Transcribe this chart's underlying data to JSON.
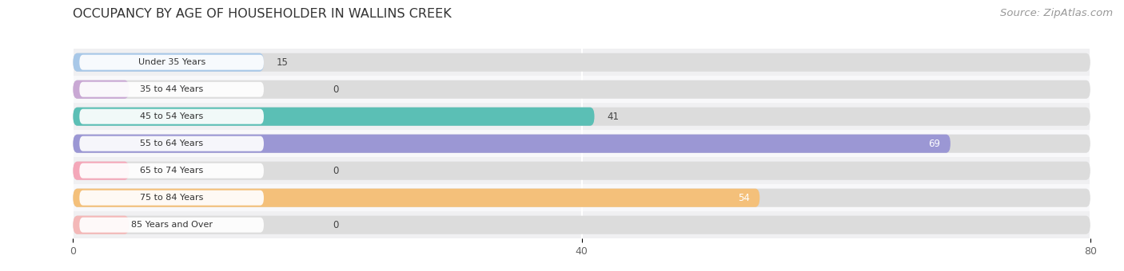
{
  "title": "OCCUPANCY BY AGE OF HOUSEHOLDER IN WALLINS CREEK",
  "source": "Source: ZipAtlas.com",
  "categories": [
    "Under 35 Years",
    "35 to 44 Years",
    "45 to 54 Years",
    "55 to 64 Years",
    "65 to 74 Years",
    "75 to 84 Years",
    "85 Years and Over"
  ],
  "values": [
    15,
    0,
    41,
    69,
    0,
    54,
    0
  ],
  "bar_colors": [
    "#a8c8e8",
    "#c9a8d4",
    "#5bbfb5",
    "#9b97d4",
    "#f4a7b9",
    "#f4c07a",
    "#f4b8b8"
  ],
  "background_color": "#f7f7f7",
  "bar_bg_color": "#e8e8e8",
  "row_bg_colors": [
    "#f0f0f0",
    "#f8f8f8"
  ],
  "xlim": [
    0,
    80
  ],
  "xticks": [
    0,
    40,
    80
  ],
  "title_fontsize": 11.5,
  "source_fontsize": 9.5,
  "bar_height": 0.68,
  "figsize": [
    14.06,
    3.4
  ],
  "dpi": 100,
  "label_inside": [
    false,
    false,
    true,
    true,
    false,
    true,
    false
  ],
  "value_labels": [
    "15",
    "0",
    "41",
    "69",
    "0",
    "54",
    "0"
  ]
}
